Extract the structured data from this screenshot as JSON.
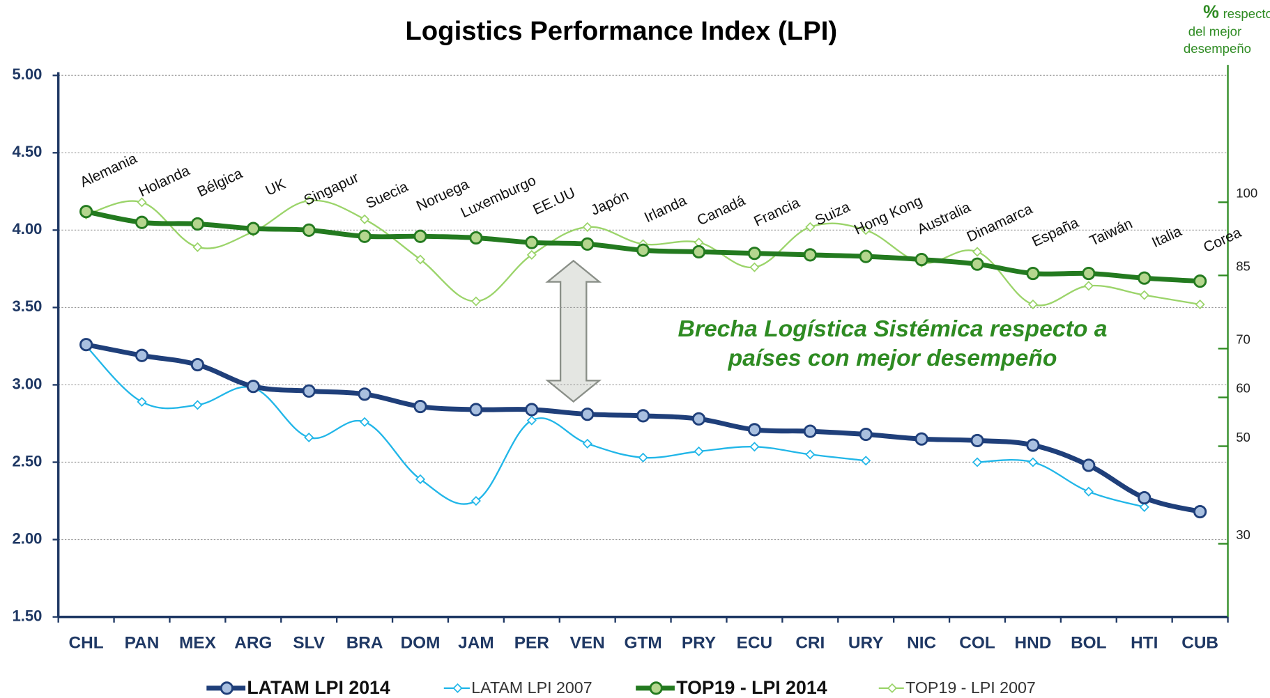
{
  "chart_data": {
    "type": "line",
    "title": "Logistics Performance Index (LPI)",
    "categories": [
      "CHL",
      "PAN",
      "MEX",
      "ARG",
      "SLV",
      "BRA",
      "DOM",
      "JAM",
      "PER",
      "VEN",
      "GTM",
      "PRY",
      "ECU",
      "CRI",
      "URY",
      "NIC",
      "COL",
      "HND",
      "BOL",
      "HTI",
      "CUB"
    ],
    "series": [
      {
        "name": "LATAM LPI 2014",
        "color": "#1f3f7a",
        "marker_fill": "#a9c0e0",
        "marker": "circle",
        "width": 6,
        "bold": true,
        "values": [
          3.26,
          3.19,
          3.13,
          2.99,
          2.96,
          2.94,
          2.86,
          2.84,
          2.84,
          2.81,
          2.8,
          2.78,
          2.71,
          2.7,
          2.68,
          2.65,
          2.64,
          2.61,
          2.48,
          2.27,
          2.18
        ]
      },
      {
        "name": "LATAM LPI 2007",
        "color": "#21b6e8",
        "marker_fill": "#ffffff",
        "marker": "diamond",
        "width": 2,
        "bold": false,
        "values": [
          3.25,
          2.89,
          2.87,
          2.98,
          2.66,
          2.76,
          2.39,
          2.25,
          2.77,
          2.62,
          2.53,
          2.57,
          2.6,
          2.55,
          2.51,
          null,
          2.5,
          2.5,
          2.31,
          2.21,
          null
        ]
      },
      {
        "name": "TOP19 - LPI 2014",
        "color": "#237a1f",
        "marker_fill": "#b5d68e",
        "marker": "circle",
        "width": 6,
        "bold": true,
        "values": [
          4.12,
          4.05,
          4.04,
          4.01,
          4.0,
          3.96,
          3.96,
          3.95,
          3.92,
          3.91,
          3.87,
          3.86,
          3.85,
          3.84,
          3.83,
          3.81,
          3.78,
          3.72,
          3.72,
          3.69,
          3.67
        ]
      },
      {
        "name": "TOP19 - LPI 2007",
        "color": "#9bd46a",
        "marker_fill": "#ffffff",
        "marker": "diamond",
        "width": 2,
        "bold": false,
        "values": [
          4.1,
          4.18,
          3.89,
          3.99,
          4.19,
          4.07,
          3.81,
          3.54,
          3.84,
          4.02,
          3.91,
          3.92,
          3.76,
          4.02,
          4.0,
          3.79,
          3.86,
          3.52,
          3.64,
          3.58,
          3.52
        ]
      }
    ],
    "top_countries": [
      "Alemania",
      "Holanda",
      "Bélgica",
      "UK",
      "Singapur",
      "Suecia",
      "Noruega",
      "Luxemburgo",
      "EE.UU",
      "Japón",
      "Irlanda",
      "Canadá",
      "Francia",
      "Suiza",
      "Hong Kong",
      "Australia",
      "Dinamarca",
      "España",
      "Taiwán",
      "Italia",
      "Corea"
    ],
    "annotation": [
      "Brecha Logística Sistémica respecto a",
      "países con mejor desempeño"
    ],
    "y2label": [
      "%",
      "respecto",
      "del mejor",
      "desempeño"
    ],
    "ylim": [
      1.5,
      5.0
    ],
    "yticks": [
      {
        "value": 1.5,
        "label": "1.50"
      },
      {
        "value": 2,
        "label": "2.00"
      },
      {
        "value": 2.5,
        "label": "2.50"
      },
      {
        "value": 3,
        "label": "3.00"
      },
      {
        "value": 3.5,
        "label": "3.50"
      },
      {
        "value": 4,
        "label": "4.00"
      },
      {
        "value": 4.5,
        "label": "4.50"
      },
      {
        "value": 5,
        "label": "5.00"
      }
    ],
    "y2lim": [
      15,
      126
    ],
    "y2ticks": [
      30,
      50,
      60,
      70,
      85,
      100
    ],
    "grid": true,
    "legend": "bottom"
  }
}
